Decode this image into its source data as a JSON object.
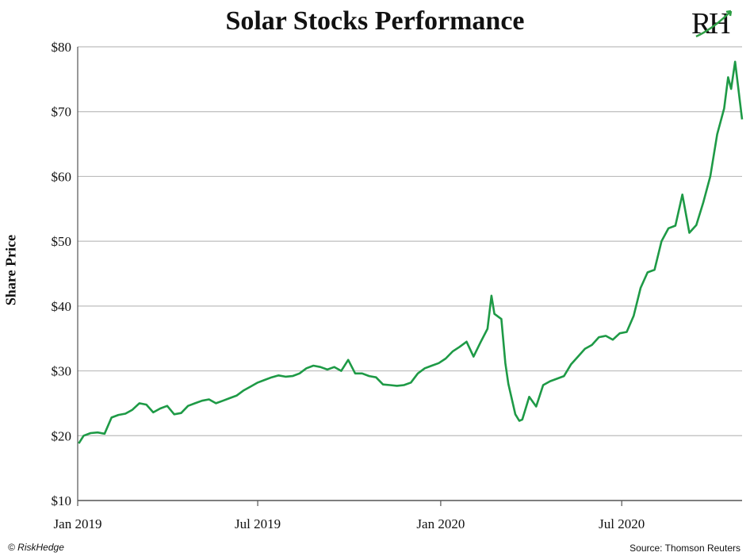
{
  "page": {
    "title": "Solar Stocks Performance",
    "logo": {
      "text_left": "R",
      "text_right": "H",
      "accent_color": "#2e9e44"
    },
    "footer_left": "© RiskHedge",
    "footer_right": "Source: Thomson Reuters"
  },
  "chart_data": {
    "type": "line",
    "title": "Solar Stocks Performance",
    "xlabel": "",
    "ylabel": "Share Price",
    "ylim": [
      10,
      80
    ],
    "y_ticks": [
      10,
      20,
      30,
      40,
      50,
      60,
      70,
      80
    ],
    "y_tick_labels": [
      "$10",
      "$20",
      "$30",
      "$40",
      "$50",
      "$60",
      "$70",
      "$80"
    ],
    "x_tick_labels": [
      "Jan 2019",
      "Jul 2019",
      "Jan 2020",
      "Jul 2020"
    ],
    "x_tick_dates": [
      "2019-01-01",
      "2019-07-01",
      "2020-01-01",
      "2020-07-01"
    ],
    "x_range": [
      "2019-01-01",
      "2020-10-30"
    ],
    "grid": "horizontal",
    "line_color": "#1e9a46",
    "series": [
      {
        "x": [
          "2019-01-02",
          "2019-01-07",
          "2019-01-14",
          "2019-01-21",
          "2019-01-28",
          "2019-02-04",
          "2019-02-11",
          "2019-02-18",
          "2019-02-25",
          "2019-03-04",
          "2019-03-11",
          "2019-03-18",
          "2019-03-25",
          "2019-04-01",
          "2019-04-08",
          "2019-04-15",
          "2019-04-22",
          "2019-04-29",
          "2019-05-06",
          "2019-05-13",
          "2019-05-20",
          "2019-05-27",
          "2019-06-03",
          "2019-06-10",
          "2019-06-17",
          "2019-06-24",
          "2019-07-01",
          "2019-07-08",
          "2019-07-15",
          "2019-07-22",
          "2019-07-29",
          "2019-08-05",
          "2019-08-12",
          "2019-08-19",
          "2019-08-26",
          "2019-09-02",
          "2019-09-09",
          "2019-09-16",
          "2019-09-23",
          "2019-09-30",
          "2019-10-07",
          "2019-10-14",
          "2019-10-21",
          "2019-10-28",
          "2019-11-04",
          "2019-11-11",
          "2019-11-18",
          "2019-11-25",
          "2019-12-02",
          "2019-12-09",
          "2019-12-16",
          "2019-12-23",
          "2019-12-30",
          "2020-01-06",
          "2020-01-13",
          "2020-01-20",
          "2020-01-27",
          "2020-02-03",
          "2020-02-10",
          "2020-02-17",
          "2020-02-21",
          "2020-02-24",
          "2020-03-02",
          "2020-03-06",
          "2020-03-09",
          "2020-03-16",
          "2020-03-20",
          "2020-03-23",
          "2020-03-30",
          "2020-04-06",
          "2020-04-13",
          "2020-04-20",
          "2020-04-27",
          "2020-05-04",
          "2020-05-11",
          "2020-05-18",
          "2020-05-25",
          "2020-06-01",
          "2020-06-08",
          "2020-06-15",
          "2020-06-22",
          "2020-06-29",
          "2020-07-06",
          "2020-07-13",
          "2020-07-20",
          "2020-07-27",
          "2020-08-03",
          "2020-08-10",
          "2020-08-17",
          "2020-08-24",
          "2020-08-31",
          "2020-09-07",
          "2020-09-14",
          "2020-09-21",
          "2020-09-28",
          "2020-10-05",
          "2020-10-12",
          "2020-10-16",
          "2020-10-19",
          "2020-10-23",
          "2020-10-30"
        ],
        "values": [
          18.8,
          20.0,
          20.4,
          20.5,
          20.3,
          22.8,
          23.2,
          23.4,
          24.0,
          25.0,
          24.8,
          23.6,
          24.2,
          24.6,
          23.3,
          23.5,
          24.6,
          25.0,
          25.4,
          25.6,
          25.0,
          25.4,
          25.8,
          26.2,
          27.0,
          27.6,
          28.2,
          28.6,
          29.0,
          29.3,
          29.1,
          29.2,
          29.6,
          30.4,
          30.8,
          30.6,
          30.2,
          30.6,
          30.0,
          31.7,
          29.6,
          29.6,
          29.2,
          29.0,
          27.9,
          27.8,
          27.7,
          27.8,
          28.2,
          29.6,
          30.4,
          30.8,
          31.2,
          31.9,
          33.0,
          33.7,
          34.5,
          32.2,
          34.4,
          36.5,
          41.6,
          38.8,
          38.0,
          31.2,
          28.0,
          23.3,
          22.3,
          22.5,
          26.0,
          24.5,
          27.8,
          28.4,
          28.8,
          29.2,
          31.0,
          32.2,
          33.4,
          34.0,
          35.2,
          35.4,
          34.8,
          35.8,
          36.0,
          38.5,
          42.8,
          45.2,
          45.6,
          50.0,
          52.0,
          52.4,
          57.2,
          51.3,
          52.5,
          56.0,
          60.0,
          66.5,
          70.5,
          75.3,
          73.5,
          77.7,
          68.8
        ]
      }
    ]
  }
}
